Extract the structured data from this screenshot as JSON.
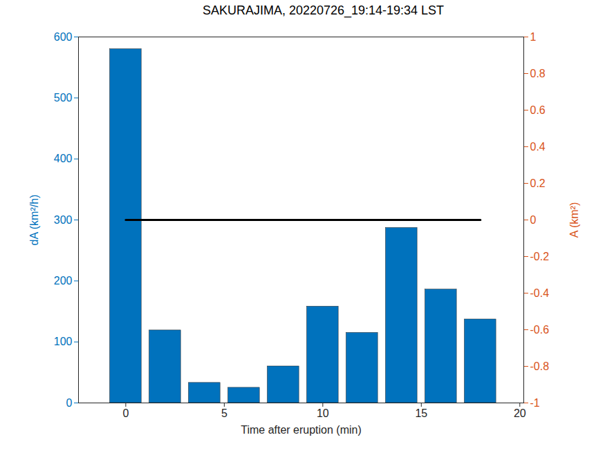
{
  "chart_data": {
    "type": "bar",
    "title": "SAKURAJIMA, 20220726_19:14-19:34 LST",
    "x_label": "Time after eruption (min)",
    "y_label": "dA (km²/h)",
    "y2_label": "A (km²)",
    "x": [
      0,
      2,
      4,
      6,
      8,
      10,
      12,
      14,
      16,
      18
    ],
    "series": [
      {
        "type": "bar",
        "color": "#0072BD",
        "values": [
          580,
          119,
          33,
          25,
          60,
          158,
          115,
          287,
          186,
          137
        ]
      },
      {
        "type": "line",
        "axis": "y2",
        "color": "#000000",
        "values": [
          0,
          0,
          0,
          0,
          0,
          0,
          0,
          0,
          0,
          0
        ]
      }
    ],
    "xlim": [
      -2.4,
      20.2
    ],
    "xticks": [
      0,
      5,
      10,
      15,
      20
    ],
    "ylim": [
      0,
      600
    ],
    "yticks": [
      0,
      100,
      200,
      300,
      400,
      500,
      600
    ],
    "y2lim": [
      -1,
      1
    ],
    "y2ticks": [
      -1,
      -0.8,
      -0.6,
      -0.4,
      -0.2,
      0,
      0.2,
      0.4,
      0.6,
      0.8,
      1
    ],
    "grid": false
  }
}
